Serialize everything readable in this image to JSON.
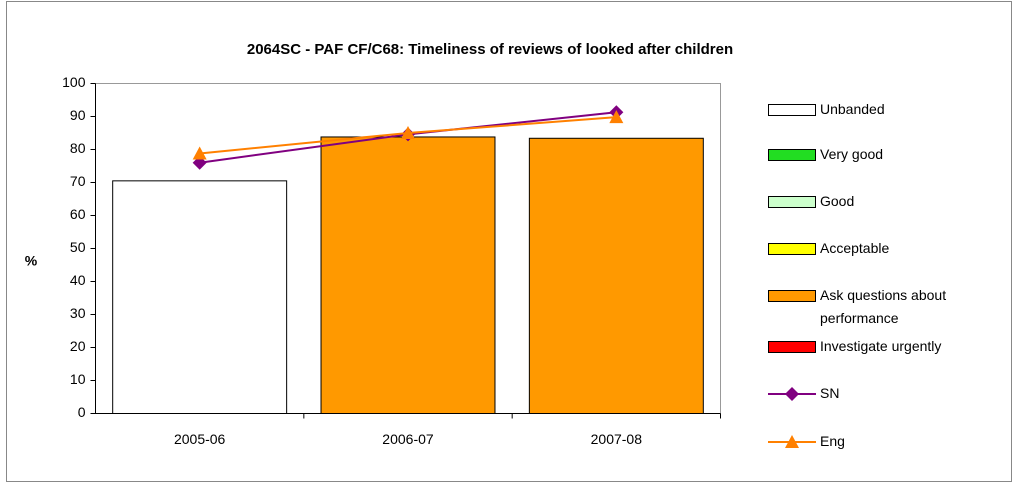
{
  "chart_data": {
    "type": "bar",
    "title": "2064SC - PAF CF/C68: Timeliness of reviews of looked after children",
    "y_label": "%",
    "categories": [
      "2005-06",
      "2006-07",
      "2007-08"
    ],
    "series": [
      {
        "name": "Unbanded",
        "type": "bar",
        "color": "#ffffff",
        "values": [
          70.5,
          null,
          null
        ]
      },
      {
        "name": "Very good",
        "type": "bar",
        "color": "#22dd22",
        "values": [
          null,
          null,
          null
        ]
      },
      {
        "name": "Good",
        "type": "bar",
        "color": "#ccffcc",
        "values": [
          null,
          null,
          null
        ]
      },
      {
        "name": "Acceptable",
        "type": "bar",
        "color": "#ffff00",
        "values": [
          null,
          null,
          null
        ]
      },
      {
        "name": "Ask questions about performance",
        "type": "bar",
        "color": "#ff9900",
        "values": [
          null,
          83.8,
          83.4
        ]
      },
      {
        "name": "Investigate urgently",
        "type": "bar",
        "color": "#ff0000",
        "values": [
          null,
          null,
          null
        ]
      },
      {
        "name": "SN",
        "type": "line",
        "marker": "diamond",
        "color": "#800080",
        "values": [
          76,
          84.6,
          91.3
        ]
      },
      {
        "name": "Eng",
        "type": "line",
        "marker": "triangle",
        "color": "#ff8000",
        "values": [
          78.8,
          85,
          89.8
        ]
      }
    ],
    "ylim": [
      0,
      100
    ],
    "yticks": [
      0,
      10,
      20,
      30,
      40,
      50,
      60,
      70,
      80,
      90,
      100
    ]
  }
}
